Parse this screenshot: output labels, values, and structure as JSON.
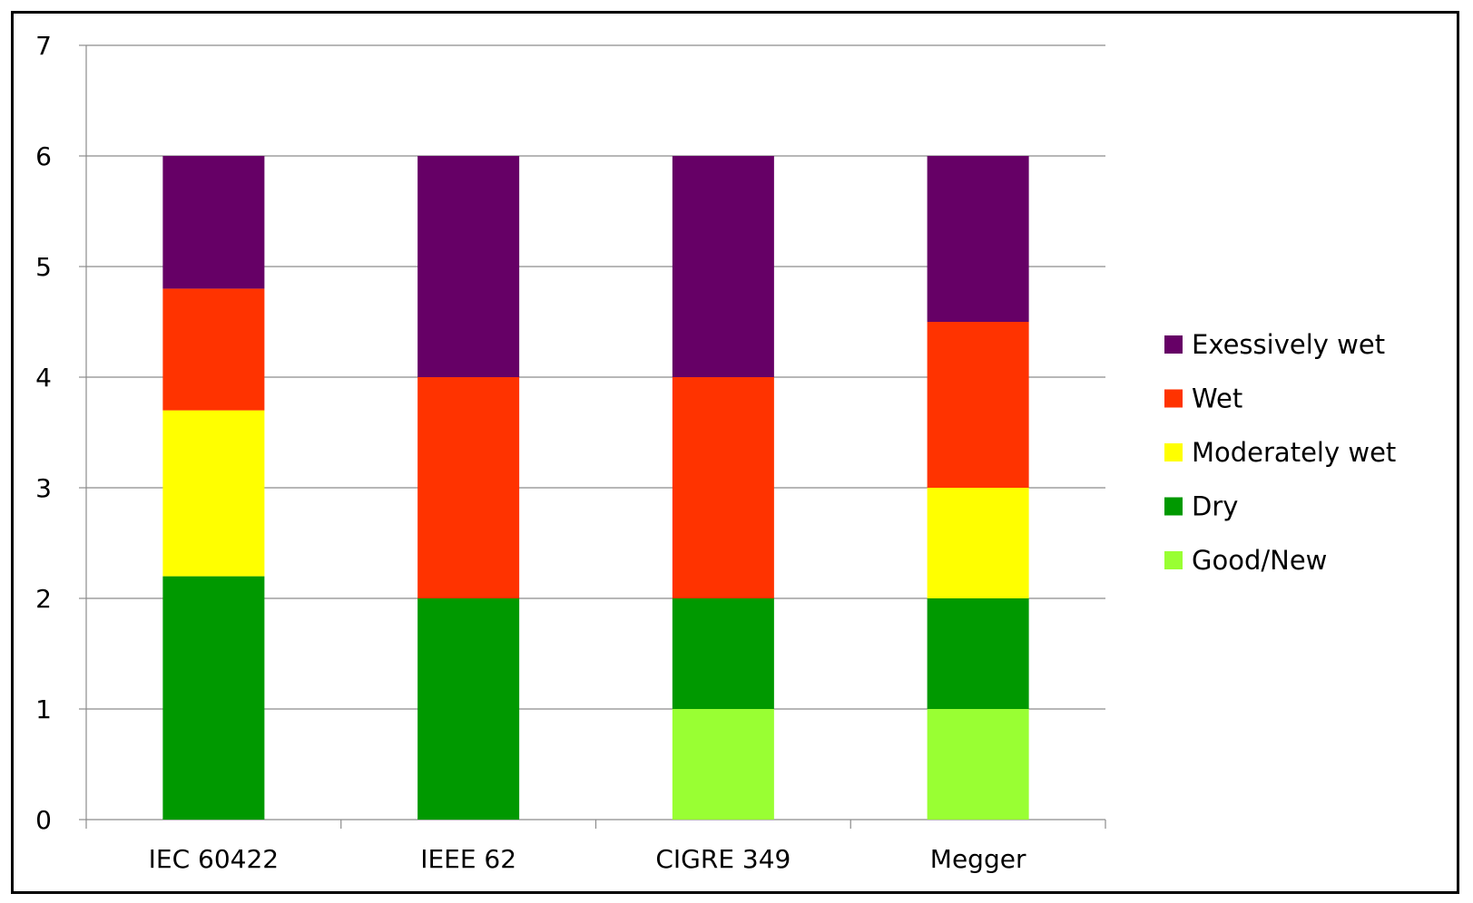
{
  "chart_data": {
    "type": "bar",
    "stacked": true,
    "categories": [
      "IEC 60422",
      "IEEE 62",
      "CIGRE 349",
      "Megger"
    ],
    "ylim": [
      0,
      7
    ],
    "yticks": [
      0,
      1,
      2,
      3,
      4,
      5,
      6,
      7
    ],
    "ytick_labels": [
      "0",
      "1",
      "2",
      "3",
      "4",
      "5",
      "6",
      "7"
    ],
    "grid": true,
    "legend_position": "right",
    "series": [
      {
        "name": "Good/New",
        "color": "#99ff33",
        "values": [
          0,
          0,
          1,
          1
        ]
      },
      {
        "name": "Dry",
        "color": "#009900",
        "values": [
          2.2,
          2,
          1,
          1
        ]
      },
      {
        "name": "Moderately wet",
        "color": "#ffff00",
        "values": [
          1.5,
          0,
          0,
          1
        ]
      },
      {
        "name": "Wet",
        "color": "#ff3300",
        "values": [
          1.1,
          2,
          2,
          1.5
        ]
      },
      {
        "name": "Exessively wet",
        "color": "#660066",
        "values": [
          1.2,
          2,
          2,
          1.5
        ]
      }
    ],
    "legend_order": [
      "Exessively wet",
      "Wet",
      "Moderately wet",
      "Dry",
      "Good/New"
    ]
  }
}
